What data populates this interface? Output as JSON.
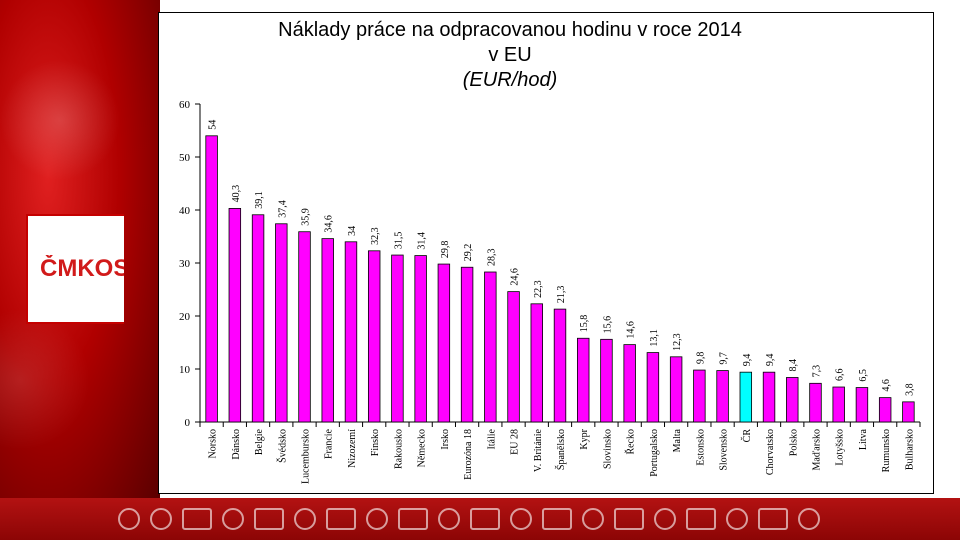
{
  "brand": {
    "name": "ČMKOS"
  },
  "chart_data": {
    "type": "bar",
    "title": "Náklady práce na odpracovanou hodinu v roce 2014",
    "title_line2": "v EU",
    "subtitle": "(EUR/hod)",
    "xlabel": "",
    "ylabel": "",
    "ylim": [
      0,
      60
    ],
    "yticks": [
      0,
      10,
      20,
      30,
      40,
      50,
      60
    ],
    "grid": false,
    "categories": [
      "Norsko",
      "Dánsko",
      "Belgie",
      "Švédsko",
      "Lucembursko",
      "Francie",
      "Nizozemí",
      "Finsko",
      "Rakousko",
      "Německo",
      "Irsko",
      "Eurozóna 18",
      "Itálie",
      "EU 28",
      "V. Británie",
      "Španělsko",
      "Kypr",
      "Slovinsko",
      "Řecko",
      "Portugalsko",
      "Malta",
      "Estonsko",
      "Slovensko",
      "ČR",
      "Chorvatsko",
      "Polsko",
      "Maďarsko",
      "Lotyšsko",
      "Litva",
      "Rumunsko",
      "Bulharsko"
    ],
    "values": [
      54,
      40.3,
      39.1,
      37.4,
      35.9,
      34.6,
      34,
      32.3,
      31.5,
      31.4,
      29.8,
      29.2,
      28.3,
      24.6,
      22.3,
      21.3,
      15.8,
      15.6,
      14.6,
      13.1,
      12.3,
      9.8,
      9.7,
      9.4,
      9.4,
      8.4,
      7.3,
      6.6,
      6.5,
      4.6,
      3.8
    ],
    "value_labels": [
      "54",
      "40,3",
      "39,1",
      "37,4",
      "35,9",
      "34,6",
      "34",
      "32,3",
      "31,5",
      "31,4",
      "29,8",
      "29,2",
      "28,3",
      "24,6",
      "22,3",
      "21,3",
      "15,8",
      "15,6",
      "14,6",
      "13,1",
      "12,3",
      "9,8",
      "9,7",
      "9,4",
      "9,4",
      "8,4",
      "7,3",
      "6,6",
      "6,5",
      "4,6",
      "3,8"
    ],
    "highlight": "ČR",
    "colors": {
      "bar": "#ff00ff",
      "highlight": "#00ffff",
      "stroke": "#000000"
    }
  }
}
